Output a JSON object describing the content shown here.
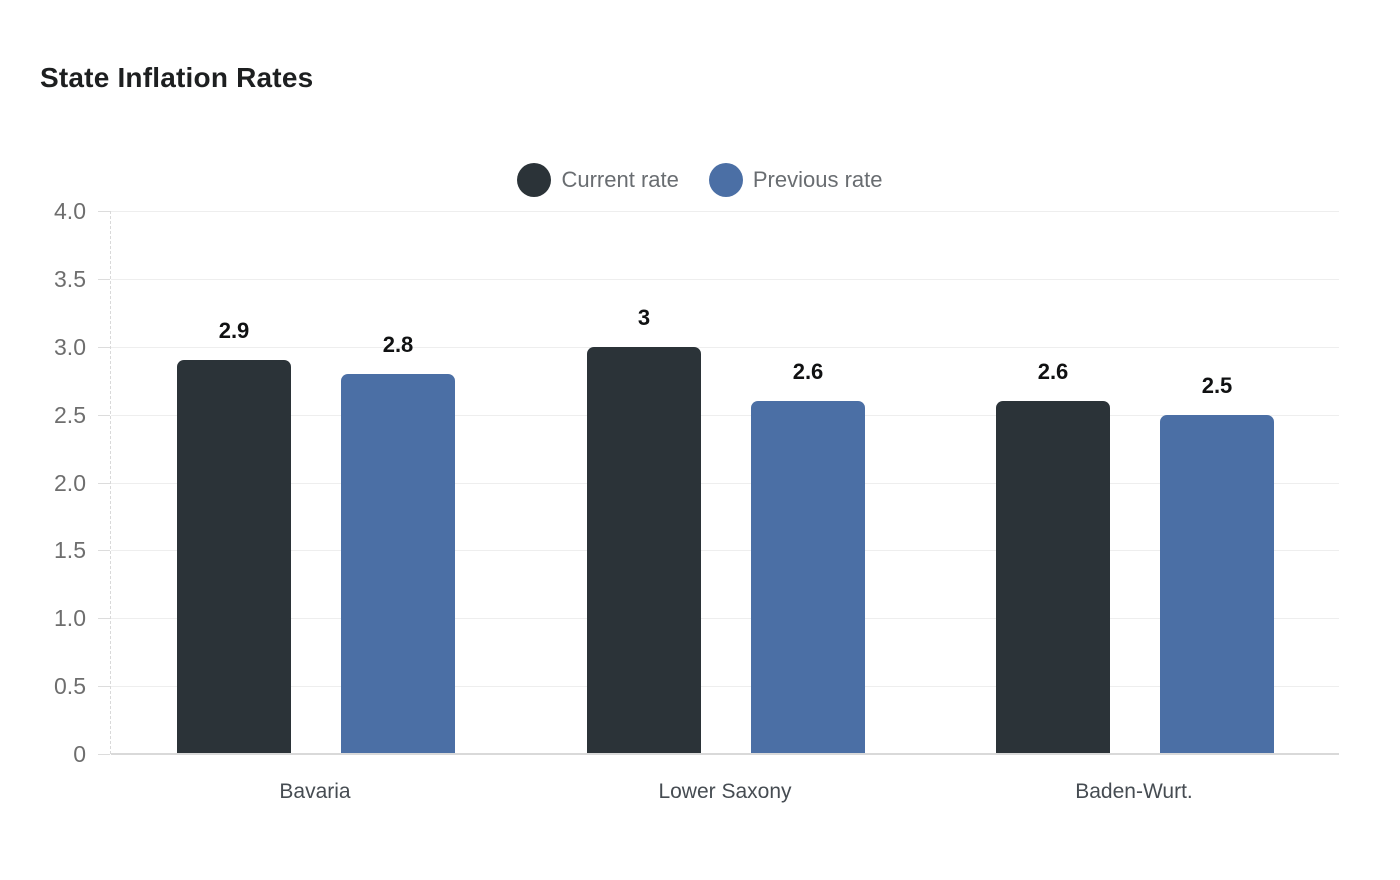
{
  "chart_data": {
    "type": "bar",
    "title": "State Inflation Rates",
    "categories": [
      "Bavaria",
      "Lower Saxony",
      "Baden-Wurt."
    ],
    "series": [
      {
        "name": "Current rate",
        "color": "#2b3338",
        "values": [
          2.9,
          3,
          2.6
        ],
        "display_values": [
          "2.9",
          "3",
          "2.6"
        ]
      },
      {
        "name": "Previous rate",
        "color": "#4b6fa5",
        "values": [
          2.8,
          2.6,
          2.5
        ],
        "display_values": [
          "2.8",
          "2.6",
          "2.5"
        ]
      }
    ],
    "xlabel": "",
    "ylabel": "",
    "ylim": [
      0,
      4
    ],
    "ytick_step": 0.5,
    "yticks": [
      {
        "value": 4.0,
        "label": "4.0"
      },
      {
        "value": 3.5,
        "label": "3.5"
      },
      {
        "value": 3.0,
        "label": "3.0"
      },
      {
        "value": 2.5,
        "label": "2.5"
      },
      {
        "value": 2.0,
        "label": "2.0"
      },
      {
        "value": 1.5,
        "label": "1.5"
      },
      {
        "value": 1.0,
        "label": "1.0"
      },
      {
        "value": 0.5,
        "label": "0.5"
      },
      {
        "value": 0,
        "label": "0"
      }
    ],
    "grid": true,
    "legend_position": "top-center",
    "value_labels_shown": true,
    "styles": {
      "background": "#ffffff",
      "gridline_color": "#eeeeee",
      "baseline_color": "#d9d9d9",
      "ytick_text_color": "#6e6e6e",
      "xtick_text_color": "#464c52",
      "legend_text_color": "#696d71",
      "title_color": "#1d1f20",
      "value_label_color": "#101112"
    }
  }
}
